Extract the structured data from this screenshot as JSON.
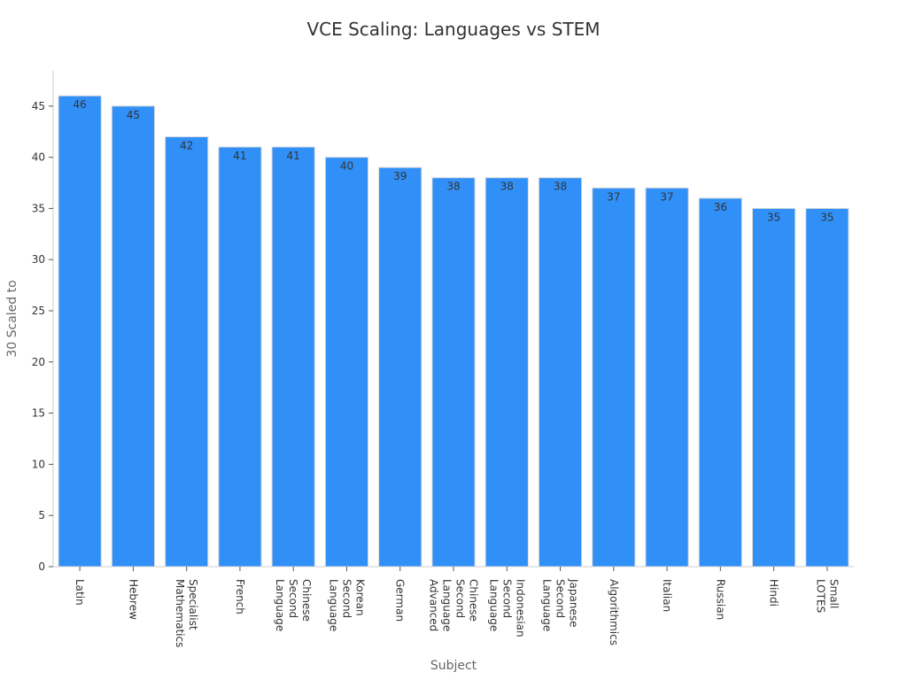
{
  "chart_data": {
    "type": "bar",
    "title": "VCE Scaling: Languages vs STEM",
    "xlabel": "Subject",
    "ylabel": "30 Scaled to",
    "categories": [
      [
        "Latin"
      ],
      [
        "Hebrew"
      ],
      [
        "Specialist",
        "Mathematics"
      ],
      [
        "French"
      ],
      [
        "Chinese",
        "Second",
        "Language"
      ],
      [
        "Korean",
        "Second",
        "Language"
      ],
      [
        "German"
      ],
      [
        "Chinese",
        "Second",
        "Language",
        "Advanced"
      ],
      [
        "Indonesian",
        "Second",
        "Language"
      ],
      [
        "Japanese",
        "Second",
        "Language"
      ],
      [
        "Algorithmics"
      ],
      [
        "Italian"
      ],
      [
        "Russian"
      ],
      [
        "Hindi"
      ],
      [
        "Small",
        "LOTES"
      ]
    ],
    "values": [
      46,
      45,
      42,
      41,
      41,
      40,
      39,
      38,
      38,
      38,
      37,
      37,
      36,
      35,
      35
    ],
    "ylim": [
      0,
      48
    ],
    "yticks": [
      0,
      5,
      10,
      15,
      20,
      25,
      30,
      35,
      40,
      45
    ],
    "grid": false,
    "bar_color": "#3090f8",
    "show_data_labels": true
  }
}
